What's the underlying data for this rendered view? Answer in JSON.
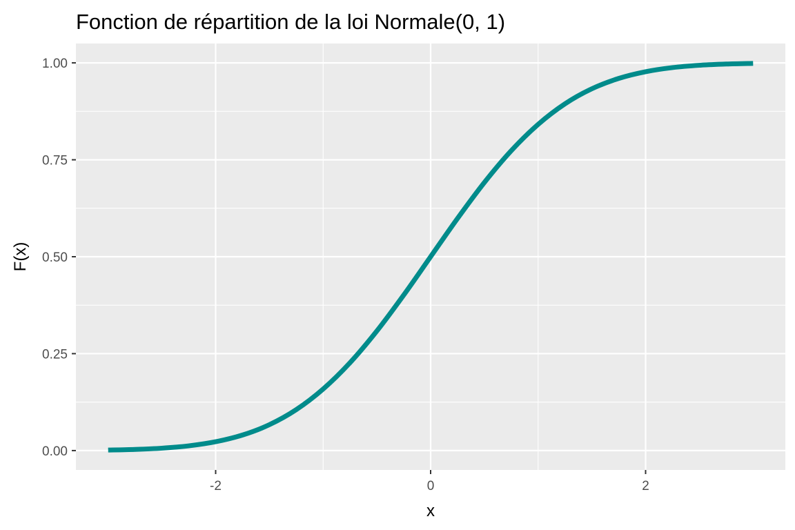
{
  "chart_data": {
    "type": "line",
    "title": "Fonction de répartition de la loi Normale(0, 1)",
    "xlabel": "x",
    "ylabel": "F(x)",
    "xlim": [
      -3.3,
      3.3
    ],
    "ylim": [
      -0.05,
      1.05
    ],
    "x_ticks": [
      -2,
      0,
      2
    ],
    "x_tick_labels": [
      "-2",
      "0",
      "2"
    ],
    "y_ticks": [
      0,
      0.25,
      0.5,
      0.75,
      1
    ],
    "y_tick_labels": [
      "0.00",
      "0.25",
      "0.50",
      "0.75",
      "1.00"
    ],
    "grid": true,
    "legend": "none",
    "colors": {
      "panel": "#EBEBEB",
      "grid": "#FFFFFF",
      "line": "#008B8B"
    },
    "series": [
      {
        "x": [
          -3.0,
          -2.75,
          -2.5,
          -2.25,
          -2.0,
          -1.75,
          -1.5,
          -1.25,
          -1.0,
          -0.75,
          -0.5,
          -0.25,
          0.0,
          0.25,
          0.5,
          0.75,
          1.0,
          1.25,
          1.5,
          1.75,
          2.0,
          2.25,
          2.5,
          2.75,
          3.0
        ],
        "y": [
          0.0013,
          0.003,
          0.0062,
          0.0122,
          0.0228,
          0.0401,
          0.0668,
          0.1056,
          0.1587,
          0.2266,
          0.3085,
          0.4013,
          0.5,
          0.5987,
          0.6915,
          0.7734,
          0.8413,
          0.8944,
          0.9332,
          0.9599,
          0.9772,
          0.9878,
          0.9938,
          0.997,
          0.9987
        ]
      }
    ]
  }
}
